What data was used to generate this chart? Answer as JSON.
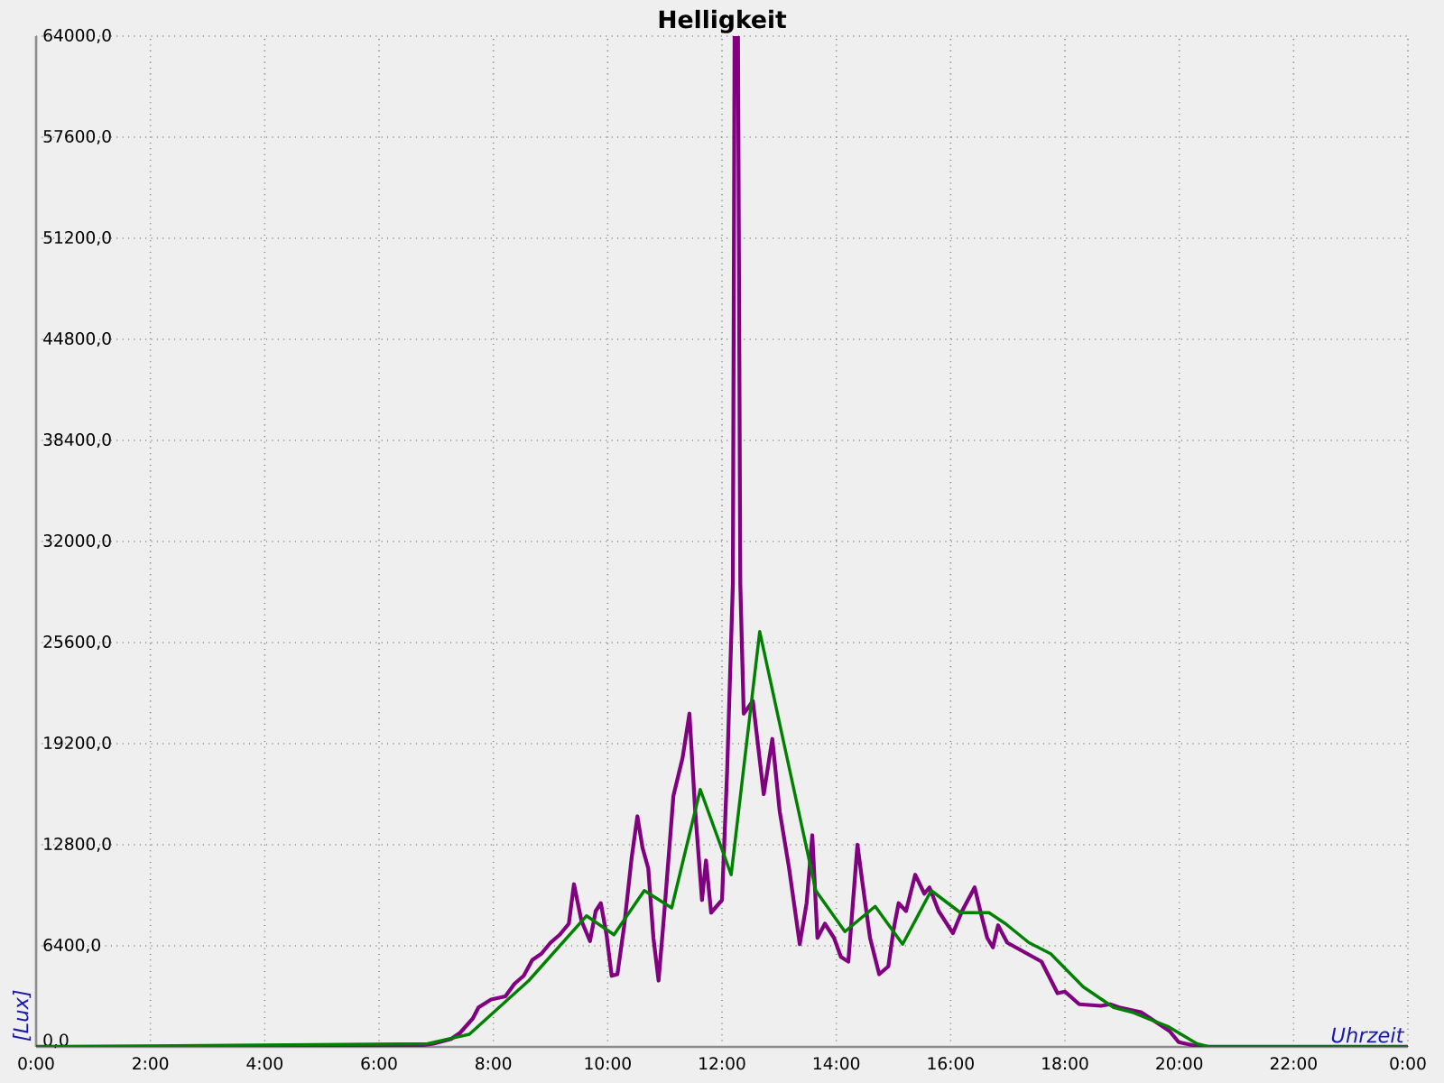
{
  "chart_data": {
    "type": "line",
    "title": "Helligkeit",
    "xlabel": "Uhrzeit",
    "ylabel": "[Lux]",
    "xlim": [
      0,
      24
    ],
    "xticks": [
      {
        "value": 0,
        "label": "0:00"
      },
      {
        "value": 2,
        "label": "2:00"
      },
      {
        "value": 4,
        "label": "4:00"
      },
      {
        "value": 6,
        "label": "6:00"
      },
      {
        "value": 8,
        "label": "8:00"
      },
      {
        "value": 10,
        "label": "10:00"
      },
      {
        "value": 12,
        "label": "12:00"
      },
      {
        "value": 14,
        "label": "14:00"
      },
      {
        "value": 16,
        "label": "16:00"
      },
      {
        "value": 18,
        "label": "18:00"
      },
      {
        "value": 20,
        "label": "20:00"
      },
      {
        "value": 22,
        "label": "22:00"
      },
      {
        "value": 24,
        "label": "0:00"
      }
    ],
    "ylim": [
      0,
      64000
    ],
    "yticks": [
      {
        "value": 0,
        "label": "0,0"
      },
      {
        "value": 6400,
        "label": "6400,0"
      },
      {
        "value": 12800,
        "label": "12800,0"
      },
      {
        "value": 19200,
        "label": "19200,0"
      },
      {
        "value": 25600,
        "label": "25600,0"
      },
      {
        "value": 32000,
        "label": "32000,0"
      },
      {
        "value": 38400,
        "label": "38400,0"
      },
      {
        "value": 44800,
        "label": "44800,0"
      },
      {
        "value": 51200,
        "label": "51200,0"
      },
      {
        "value": 57600,
        "label": "57600,0"
      },
      {
        "value": 64000,
        "label": "64000,0"
      }
    ],
    "grid": true,
    "marker": "none",
    "line_style": "solid",
    "series": [
      {
        "color": "#800080",
        "x": [
          0,
          6.54,
          6.95,
          7.26,
          7.42,
          7.64,
          7.74,
          7.96,
          8.21,
          8.37,
          8.53,
          8.68,
          8.84,
          9.0,
          9.16,
          9.32,
          9.41,
          9.54,
          9.69,
          9.79,
          9.88,
          9.98,
          10.07,
          10.17,
          10.29,
          10.42,
          10.52,
          10.61,
          10.71,
          10.8,
          10.89,
          10.99,
          11.15,
          11.31,
          11.43,
          11.53,
          11.65,
          11.72,
          11.81,
          12.0,
          12.09,
          12.19,
          12.22,
          12.28,
          12.32,
          12.38,
          12.54,
          12.73,
          12.88,
          13.01,
          13.17,
          13.26,
          13.36,
          13.48,
          13.58,
          13.67,
          13.8,
          13.96,
          14.08,
          14.21,
          14.37,
          14.46,
          14.59,
          14.75,
          14.91,
          15.0,
          15.09,
          15.22,
          15.38,
          15.54,
          15.63,
          15.79,
          16.04,
          16.2,
          16.42,
          16.52,
          16.64,
          16.74,
          16.83,
          16.99,
          17.24,
          17.59,
          17.87,
          18.0,
          18.25,
          18.63,
          18.79,
          18.95,
          19.33,
          19.58,
          19.83,
          19.99,
          20.37,
          24
        ],
        "values": [
          0,
          0,
          200,
          500,
          900,
          1800,
          2500,
          3000,
          3200,
          4000,
          4500,
          5500,
          5900,
          6600,
          7100,
          7800,
          10300,
          8000,
          6700,
          8600,
          9100,
          7100,
          4500,
          4600,
          7700,
          12000,
          14600,
          12600,
          11300,
          6900,
          4200,
          8500,
          15900,
          18300,
          21100,
          15000,
          9300,
          11800,
          8500,
          9300,
          17500,
          29300,
          64000,
          64000,
          29300,
          21100,
          21900,
          16000,
          19500,
          14900,
          11400,
          9100,
          6500,
          9100,
          13400,
          6900,
          7800,
          6900,
          5700,
          5400,
          12800,
          10300,
          6900,
          4600,
          5100,
          7400,
          9100,
          8600,
          10900,
          9700,
          10100,
          8600,
          7200,
          8600,
          10100,
          8600,
          6900,
          6300,
          7700,
          6600,
          6100,
          5400,
          3400,
          3500,
          2700,
          2600,
          2700,
          2500,
          2200,
          1600,
          1000,
          300,
          0,
          0
        ]
      },
      {
        "color": "#008000",
        "x": [
          0,
          6.85,
          7.58,
          8.62,
          9.63,
          10.11,
          10.64,
          11.12,
          11.62,
          12.16,
          12.66,
          13.64,
          14.15,
          14.68,
          15.16,
          15.66,
          16.17,
          16.67,
          16.96,
          17.37,
          17.75,
          18.32,
          18.85,
          19.17,
          19.8,
          20.31,
          20.53,
          24
        ],
        "values": [
          0,
          200,
          800,
          4200,
          8300,
          7100,
          9900,
          8800,
          16300,
          10900,
          26300,
          9900,
          7300,
          8900,
          6500,
          9900,
          8500,
          8500,
          7800,
          6600,
          5900,
          3800,
          2500,
          2200,
          1300,
          200,
          0,
          0
        ]
      }
    ]
  }
}
